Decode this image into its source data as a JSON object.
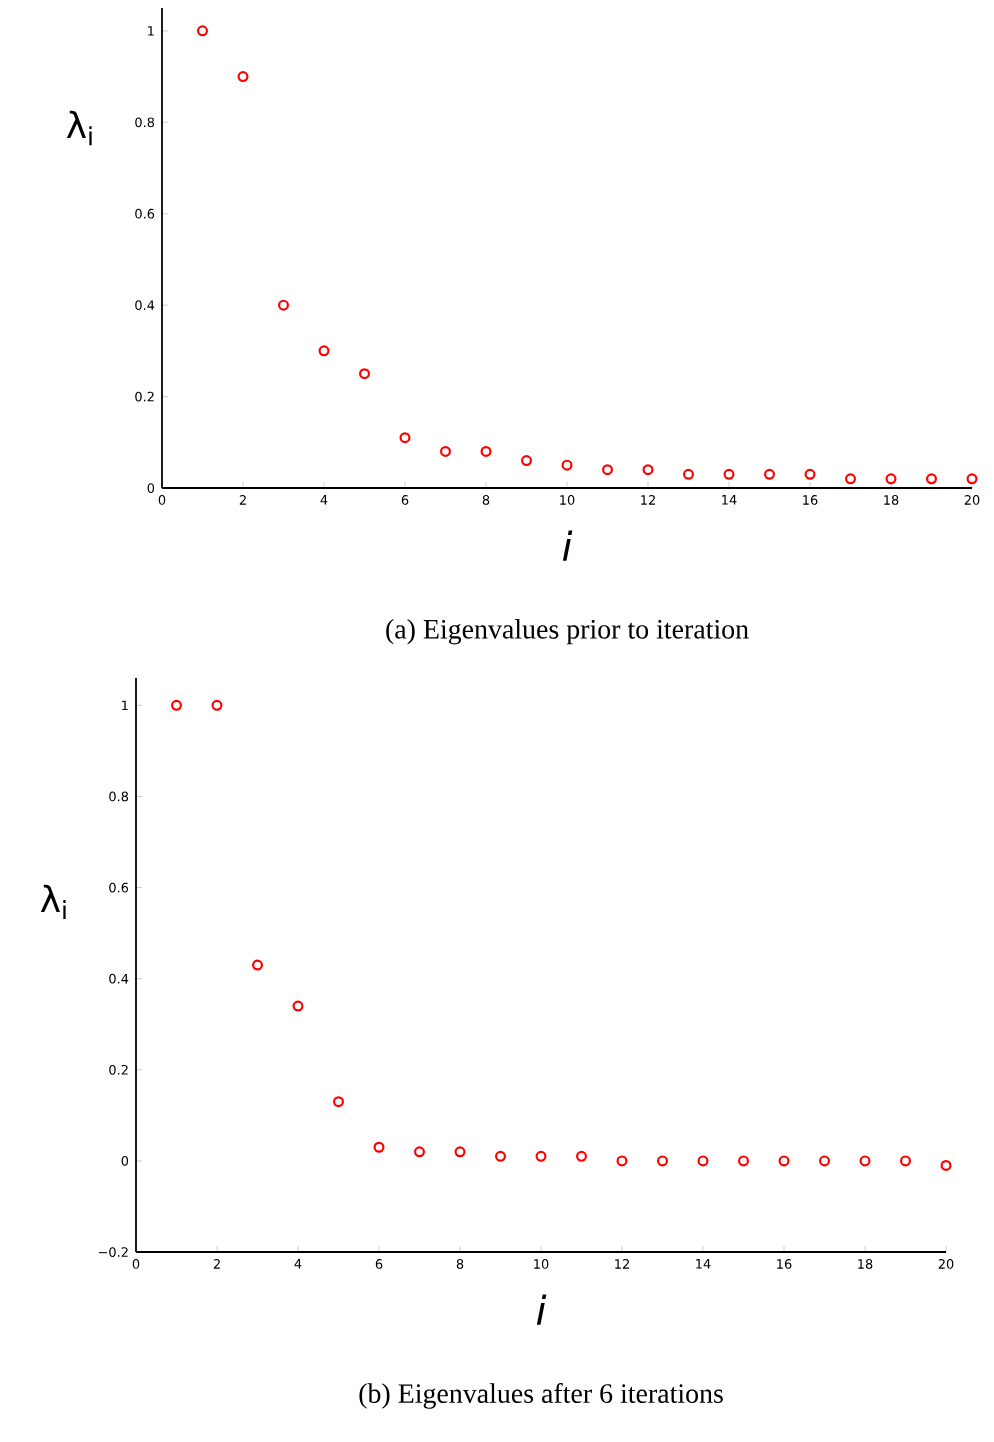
{
  "chart_data": [
    {
      "type": "scatter",
      "title": "(a) Eigenvalues prior to iteration",
      "xlabel": "i",
      "ylabel": "λ$_{i}$",
      "x": [
        1,
        2,
        3,
        4,
        5,
        6,
        7,
        8,
        9,
        10,
        11,
        12,
        13,
        14,
        15,
        16,
        17,
        18,
        19,
        20
      ],
      "series": [
        {
          "color": "#ff0000",
          "values": [
            1.0,
            0.9,
            0.4,
            0.3,
            0.25,
            0.11,
            0.08,
            0.08,
            0.06,
            0.05,
            0.04,
            0.04,
            0.03,
            0.03,
            0.03,
            0.03,
            0.02,
            0.02,
            0.02,
            0.02
          ]
        }
      ],
      "marker": "circle",
      "xlim": [
        0,
        20
      ],
      "ylim": [
        0,
        1.05
      ],
      "xticks": [
        0,
        2,
        4,
        6,
        8,
        10,
        12,
        14,
        16,
        18,
        20
      ],
      "yticks": [
        0,
        0.2,
        0.4,
        0.6,
        0.8,
        1
      ]
    },
    {
      "type": "scatter",
      "title": "(b) Eigenvalues after 6 iterations",
      "xlabel": "i",
      "ylabel": "λ$_{i}$",
      "x": [
        1,
        2,
        3,
        4,
        5,
        6,
        7,
        8,
        9,
        10,
        11,
        12,
        13,
        14,
        15,
        16,
        17,
        18,
        19,
        20
      ],
      "series": [
        {
          "color": "#ff0000",
          "values": [
            1.0,
            1.0,
            0.43,
            0.34,
            0.13,
            0.03,
            0.02,
            0.02,
            0.01,
            0.01,
            0.01,
            0.0,
            0.0,
            0.0,
            0.0,
            0.0,
            0.0,
            0.0,
            0.0,
            -0.01
          ]
        }
      ],
      "marker": "circle",
      "xlim": [
        0,
        20
      ],
      "ylim": [
        -0.2,
        1.06
      ],
      "xticks": [
        0,
        2,
        4,
        6,
        8,
        10,
        12,
        14,
        16,
        18,
        20
      ],
      "yticks": [
        {
          "value": -0.2,
          "label": "−0.2"
        },
        0,
        0.2,
        0.4,
        0.6,
        0.8,
        1
      ]
    }
  ]
}
